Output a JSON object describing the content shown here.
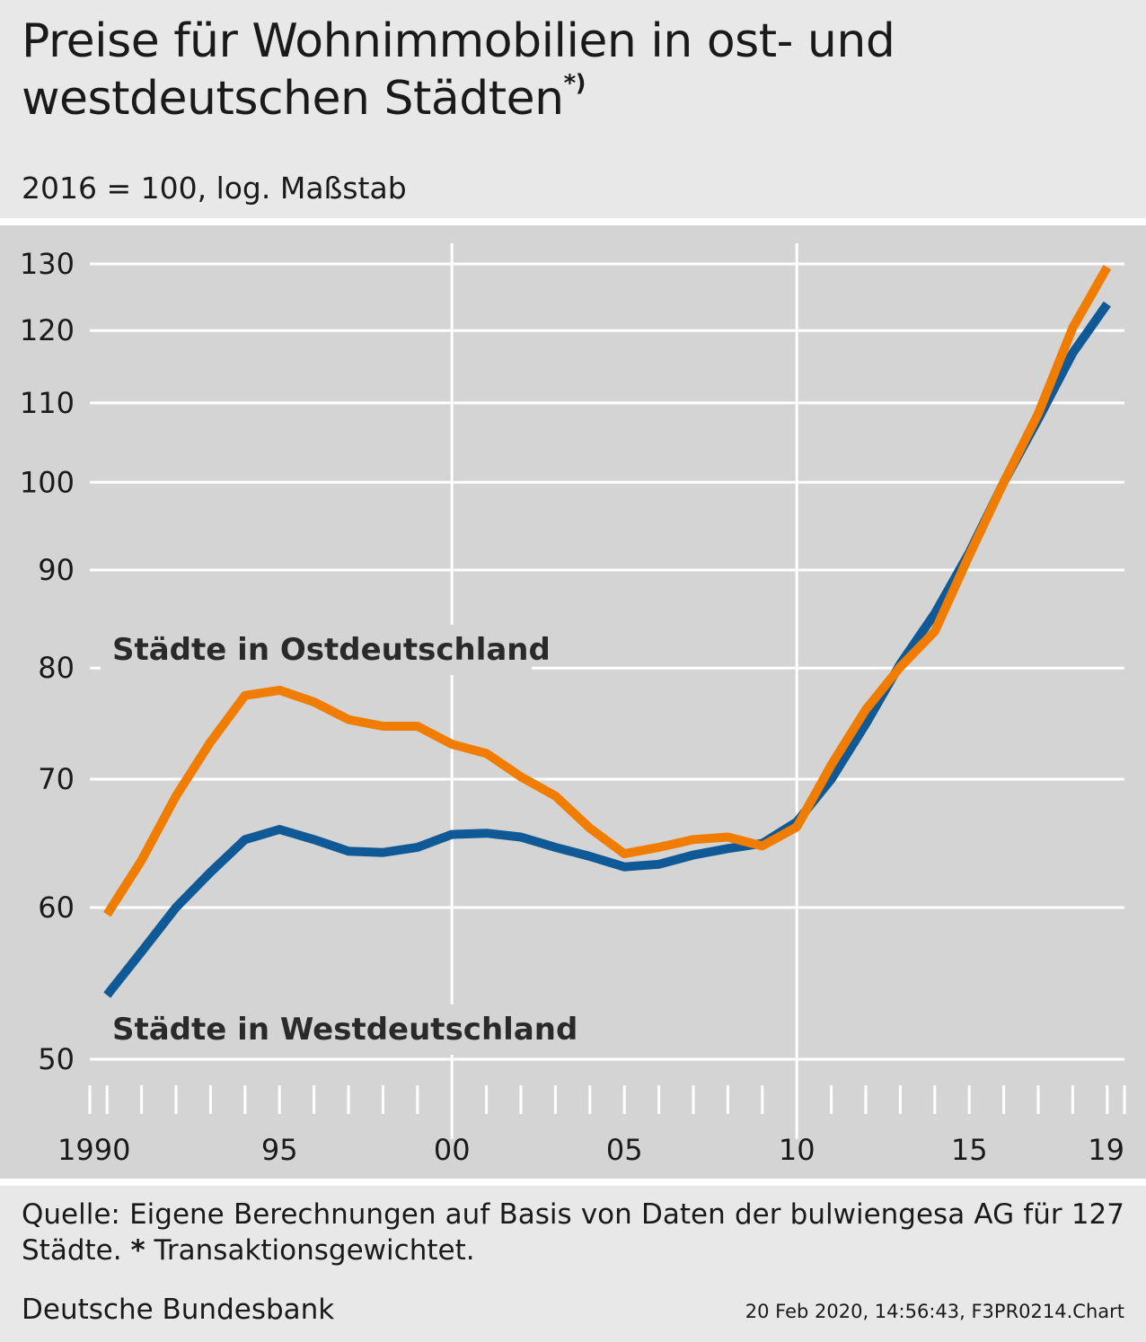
{
  "header": {
    "title": "Preise für Wohnimmobilien in ost- und westdeutschen Städten",
    "title_footnote_mark": "*)",
    "subtitle": "2016 = 100, log. Maßstab"
  },
  "chart_data": {
    "type": "line",
    "title": "Preise für Wohnimmobilien in ost- und westdeutschen Städten",
    "subtitle": "2016 = 100, log. Maßstab",
    "y_scale": "log",
    "ylim": [
      50,
      130
    ],
    "y_ticks": [
      50,
      60,
      70,
      80,
      90,
      100,
      110,
      120,
      130
    ],
    "xlim": [
      1989.5,
      2019.5
    ],
    "x_ticks": [
      1990,
      1995,
      2000,
      2005,
      2010,
      2015,
      2019
    ],
    "x_tick_labels": [
      "1990",
      "95",
      "00",
      "05",
      "10",
      "15",
      "19"
    ],
    "grid": true,
    "x": [
      1990,
      1991,
      1992,
      1993,
      1994,
      1995,
      1996,
      1997,
      1998,
      1999,
      2000,
      2001,
      2002,
      2003,
      2004,
      2005,
      2006,
      2007,
      2008,
      2009,
      2010,
      2011,
      2012,
      2013,
      2014,
      2015,
      2016,
      2017,
      2018,
      2019
    ],
    "series": [
      {
        "name": "Städte in Ostdeutschland",
        "color": "#f07d00",
        "values": [
          59.5,
          63.5,
          68.6,
          73.2,
          77.4,
          77.9,
          76.8,
          75.2,
          74.6,
          74.6,
          73.0,
          72.2,
          70.2,
          68.6,
          66.0,
          64.0,
          64.5,
          65.1,
          65.3,
          64.6,
          66.1,
          71.2,
          76.1,
          80.1,
          83.6,
          91.6,
          100.0,
          108.6,
          120.4,
          129.5
        ]
      },
      {
        "name": "Städte in Westdeutschland",
        "color": "#0f5a96",
        "values": [
          54.0,
          56.9,
          60.0,
          62.6,
          65.1,
          65.9,
          65.1,
          64.2,
          64.1,
          64.5,
          65.5,
          65.6,
          65.3,
          64.5,
          63.8,
          63.0,
          63.2,
          63.9,
          64.4,
          64.8,
          66.5,
          70.0,
          74.8,
          80.4,
          85.4,
          91.9,
          100.0,
          107.9,
          116.8,
          123.9
        ]
      }
    ],
    "series_labels": [
      "Städte in Ostdeutschland",
      "Städte in Westdeutschland"
    ]
  },
  "footer": {
    "source_text": "Quelle: Eigene Berechnungen auf Basis von Daten der bulwiengesa AG für 127 Städte.",
    "footnote_mark": "*",
    "footnote_text": "Transaktionsgewichtet.",
    "publisher": "Deutsche Bundesbank",
    "stamp": "20 Feb 2020, 14:56:43, F3PR0214.Chart"
  }
}
